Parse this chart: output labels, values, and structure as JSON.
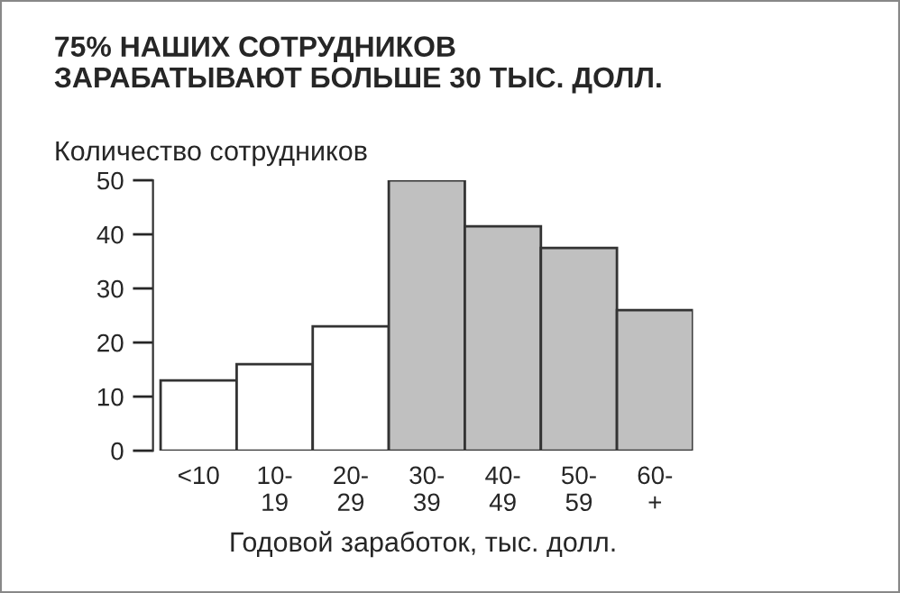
{
  "chart_data": {
    "type": "bar",
    "title": "75% НАШИХ СОТРУДНИКОВ\nЗАРАБАТЫВАЮТ БОЛЬШЕ 30 ТЫС. ДОЛЛ.",
    "ylabel": "Количество сотрудников",
    "xlabel": "Годовой заработок, тыс. долл.",
    "categories": [
      "<10",
      "10-\n19",
      "20-\n29",
      "30-\n39",
      "40-\n49",
      "50-\n59",
      "60-\n+"
    ],
    "values": [
      13,
      16,
      23,
      50,
      41.5,
      37.5,
      26
    ],
    "colors": [
      "#ffffff",
      "#ffffff",
      "#ffffff",
      "#c0c0c0",
      "#c0c0c0",
      "#c0c0c0",
      "#c0c0c0"
    ],
    "ylim": [
      0,
      50
    ],
    "yticks": [
      0,
      10,
      20,
      30,
      40,
      50
    ],
    "grid": false,
    "legend": false
  }
}
